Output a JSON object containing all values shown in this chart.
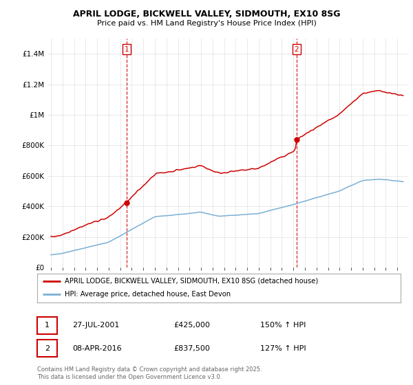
{
  "title": "APRIL LODGE, BICKWELL VALLEY, SIDMOUTH, EX10 8SG",
  "subtitle": "Price paid vs. HM Land Registry's House Price Index (HPI)",
  "legend_line1": "APRIL LODGE, BICKWELL VALLEY, SIDMOUTH, EX10 8SG (detached house)",
  "legend_line2": "HPI: Average price, detached house, East Devon",
  "red_color": "#cc0000",
  "blue_color": "#7aafd4",
  "sale1_date": "27-JUL-2001",
  "sale1_price": "£425,000",
  "sale1_hpi": "150% ↑ HPI",
  "sale2_date": "08-APR-2016",
  "sale2_price": "£837,500",
  "sale2_hpi": "127% ↑ HPI",
  "footnote": "Contains HM Land Registry data © Crown copyright and database right 2025.\nThis data is licensed under the Open Government Licence v3.0.",
  "ylim": [
    0,
    1500000
  ],
  "yticks": [
    0,
    200000,
    400000,
    600000,
    800000,
    1000000,
    1200000,
    1400000
  ],
  "ytick_labels": [
    "£0",
    "£200K",
    "£400K",
    "£600K",
    "£800K",
    "£1M",
    "£1.2M",
    "£1.4M"
  ],
  "background_color": "#ffffff",
  "grid_color": "#e0e0e0"
}
